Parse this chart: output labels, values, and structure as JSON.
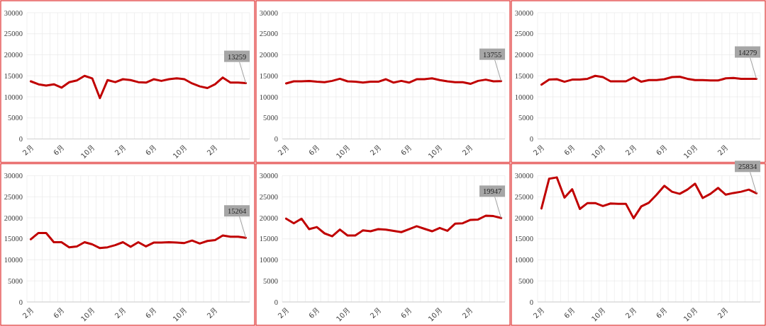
{
  "chart_data": [
    {
      "type": "line",
      "categories": [
        "2月",
        null,
        null,
        null,
        "6月",
        null,
        null,
        null,
        "10月",
        null,
        null,
        null,
        "2月",
        null,
        null,
        null,
        "6月",
        null,
        null,
        null,
        "10月",
        null,
        null,
        null,
        "2月",
        null,
        null,
        null,
        null
      ],
      "values": [
        13700,
        13000,
        12700,
        13000,
        12200,
        13500,
        13900,
        15000,
        14400,
        9700,
        14000,
        13500,
        14200,
        14000,
        13500,
        13400,
        14200,
        13800,
        14200,
        14400,
        14200,
        13200,
        12500,
        12100,
        13000,
        14600,
        13400,
        13400,
        13259
      ],
      "value_labels": [
        null,
        null,
        null,
        null,
        null,
        null,
        null,
        null,
        null,
        null,
        null,
        null,
        null,
        null,
        null,
        null,
        null,
        null,
        null,
        null,
        null,
        null,
        null,
        null,
        null,
        null,
        null,
        null,
        "13259"
      ],
      "color": "#c00000",
      "ylim": [
        0,
        30000
      ],
      "yticks": [
        0,
        5000,
        10000,
        15000,
        20000,
        25000,
        30000
      ],
      "grid": true
    },
    {
      "type": "line",
      "categories": [
        "2月",
        null,
        null,
        null,
        "6月",
        null,
        null,
        null,
        "10月",
        null,
        null,
        null,
        "2月",
        null,
        null,
        null,
        "6月",
        null,
        null,
        null,
        "10月",
        null,
        null,
        null,
        "2月",
        null,
        null,
        null,
        null
      ],
      "values": [
        13200,
        13700,
        13700,
        13800,
        13600,
        13500,
        13800,
        14300,
        13700,
        13600,
        13400,
        13600,
        13600,
        14200,
        13400,
        13800,
        13400,
        14200,
        14200,
        14400,
        14000,
        13700,
        13500,
        13500,
        13100,
        13800,
        14100,
        13700,
        13755
      ],
      "value_labels": [
        null,
        null,
        null,
        null,
        null,
        null,
        null,
        null,
        null,
        null,
        null,
        null,
        null,
        null,
        null,
        null,
        null,
        null,
        null,
        null,
        null,
        null,
        null,
        null,
        null,
        null,
        null,
        null,
        "13755"
      ],
      "color": "#c00000",
      "ylim": [
        0,
        30000
      ],
      "yticks": [
        0,
        5000,
        10000,
        15000,
        20000,
        25000,
        30000
      ],
      "grid": true
    },
    {
      "type": "line",
      "categories": [
        "2月",
        null,
        null,
        null,
        "6月",
        null,
        null,
        null,
        "10月",
        null,
        null,
        null,
        "2月",
        null,
        null,
        null,
        "6月",
        null,
        null,
        null,
        "10月",
        null,
        null,
        null,
        "2月",
        null,
        null,
        null,
        null
      ],
      "values": [
        12900,
        14100,
        14200,
        13600,
        14100,
        14100,
        14300,
        15000,
        14700,
        13700,
        13700,
        13700,
        14600,
        13600,
        14000,
        14000,
        14200,
        14700,
        14800,
        14300,
        14000,
        14000,
        13900,
        13900,
        14400,
        14500,
        14300,
        14300,
        14279
      ],
      "value_labels": [
        null,
        null,
        null,
        null,
        null,
        null,
        null,
        null,
        null,
        null,
        null,
        null,
        null,
        null,
        null,
        null,
        null,
        null,
        null,
        null,
        null,
        null,
        null,
        null,
        null,
        null,
        null,
        null,
        "14279"
      ],
      "color": "#c00000",
      "ylim": [
        0,
        30000
      ],
      "yticks": [
        0,
        5000,
        10000,
        15000,
        20000,
        25000,
        30000
      ],
      "grid": true
    },
    {
      "type": "line",
      "categories": [
        "2月",
        null,
        null,
        null,
        "6月",
        null,
        null,
        null,
        "10月",
        null,
        null,
        null,
        "2月",
        null,
        null,
        null,
        "6月",
        null,
        null,
        null,
        "10月",
        null,
        null,
        null,
        "2月",
        null,
        null,
        null,
        null
      ],
      "values": [
        14900,
        16400,
        16400,
        14200,
        14200,
        13000,
        13200,
        14200,
        13700,
        12800,
        13000,
        13500,
        14200,
        13100,
        14200,
        13200,
        14100,
        14100,
        14200,
        14100,
        14000,
        14600,
        13900,
        14500,
        14700,
        15800,
        15500,
        15500,
        15264
      ],
      "value_labels": [
        null,
        null,
        null,
        null,
        null,
        null,
        null,
        null,
        null,
        null,
        null,
        null,
        null,
        null,
        null,
        null,
        null,
        null,
        null,
        null,
        null,
        null,
        null,
        null,
        null,
        null,
        null,
        null,
        "15264"
      ],
      "color": "#c00000",
      "ylim": [
        0,
        30000
      ],
      "yticks": [
        0,
        5000,
        10000,
        15000,
        20000,
        25000,
        30000
      ],
      "grid": true
    },
    {
      "type": "line",
      "categories": [
        "2月",
        null,
        null,
        null,
        "6月",
        null,
        null,
        null,
        "10月",
        null,
        null,
        null,
        "2月",
        null,
        null,
        null,
        "6月",
        null,
        null,
        null,
        "10月",
        null,
        null,
        null,
        "2月",
        null,
        null,
        null,
        null
      ],
      "values": [
        19800,
        18700,
        19800,
        17300,
        17800,
        16300,
        15600,
        17200,
        15800,
        15800,
        17000,
        16800,
        17300,
        17200,
        16900,
        16600,
        17300,
        18000,
        17400,
        16800,
        17600,
        16900,
        18600,
        18700,
        19500,
        19600,
        20500,
        20400,
        19947
      ],
      "value_labels": [
        null,
        null,
        null,
        null,
        null,
        null,
        null,
        null,
        null,
        null,
        null,
        null,
        null,
        null,
        null,
        null,
        null,
        null,
        null,
        null,
        null,
        null,
        null,
        null,
        null,
        null,
        null,
        null,
        "19947"
      ],
      "color": "#c00000",
      "ylim": [
        0,
        30000
      ],
      "yticks": [
        0,
        5000,
        10000,
        15000,
        20000,
        25000,
        30000
      ],
      "grid": true
    },
    {
      "type": "line",
      "categories": [
        "2月",
        null,
        null,
        null,
        "6月",
        null,
        null,
        null,
        "10月",
        null,
        null,
        null,
        "2月",
        null,
        null,
        null,
        "6月",
        null,
        null,
        null,
        "10月",
        null,
        null,
        null,
        "2月",
        null,
        null,
        null,
        null
      ],
      "values": [
        22200,
        29300,
        29600,
        24800,
        26800,
        22100,
        23500,
        23500,
        22800,
        23400,
        23300,
        23300,
        19900,
        22700,
        23600,
        25500,
        27600,
        26200,
        25700,
        26700,
        28100,
        24700,
        25700,
        27100,
        25500,
        25900,
        26200,
        26700,
        25834
      ],
      "value_labels": [
        null,
        null,
        null,
        null,
        null,
        null,
        null,
        null,
        null,
        null,
        null,
        null,
        null,
        null,
        null,
        null,
        null,
        null,
        null,
        null,
        null,
        null,
        null,
        null,
        null,
        null,
        null,
        null,
        "25834"
      ],
      "color": "#c00000",
      "ylim": [
        0,
        30000
      ],
      "yticks": [
        0,
        5000,
        10000,
        15000,
        20000,
        25000,
        30000
      ],
      "grid": true
    }
  ]
}
